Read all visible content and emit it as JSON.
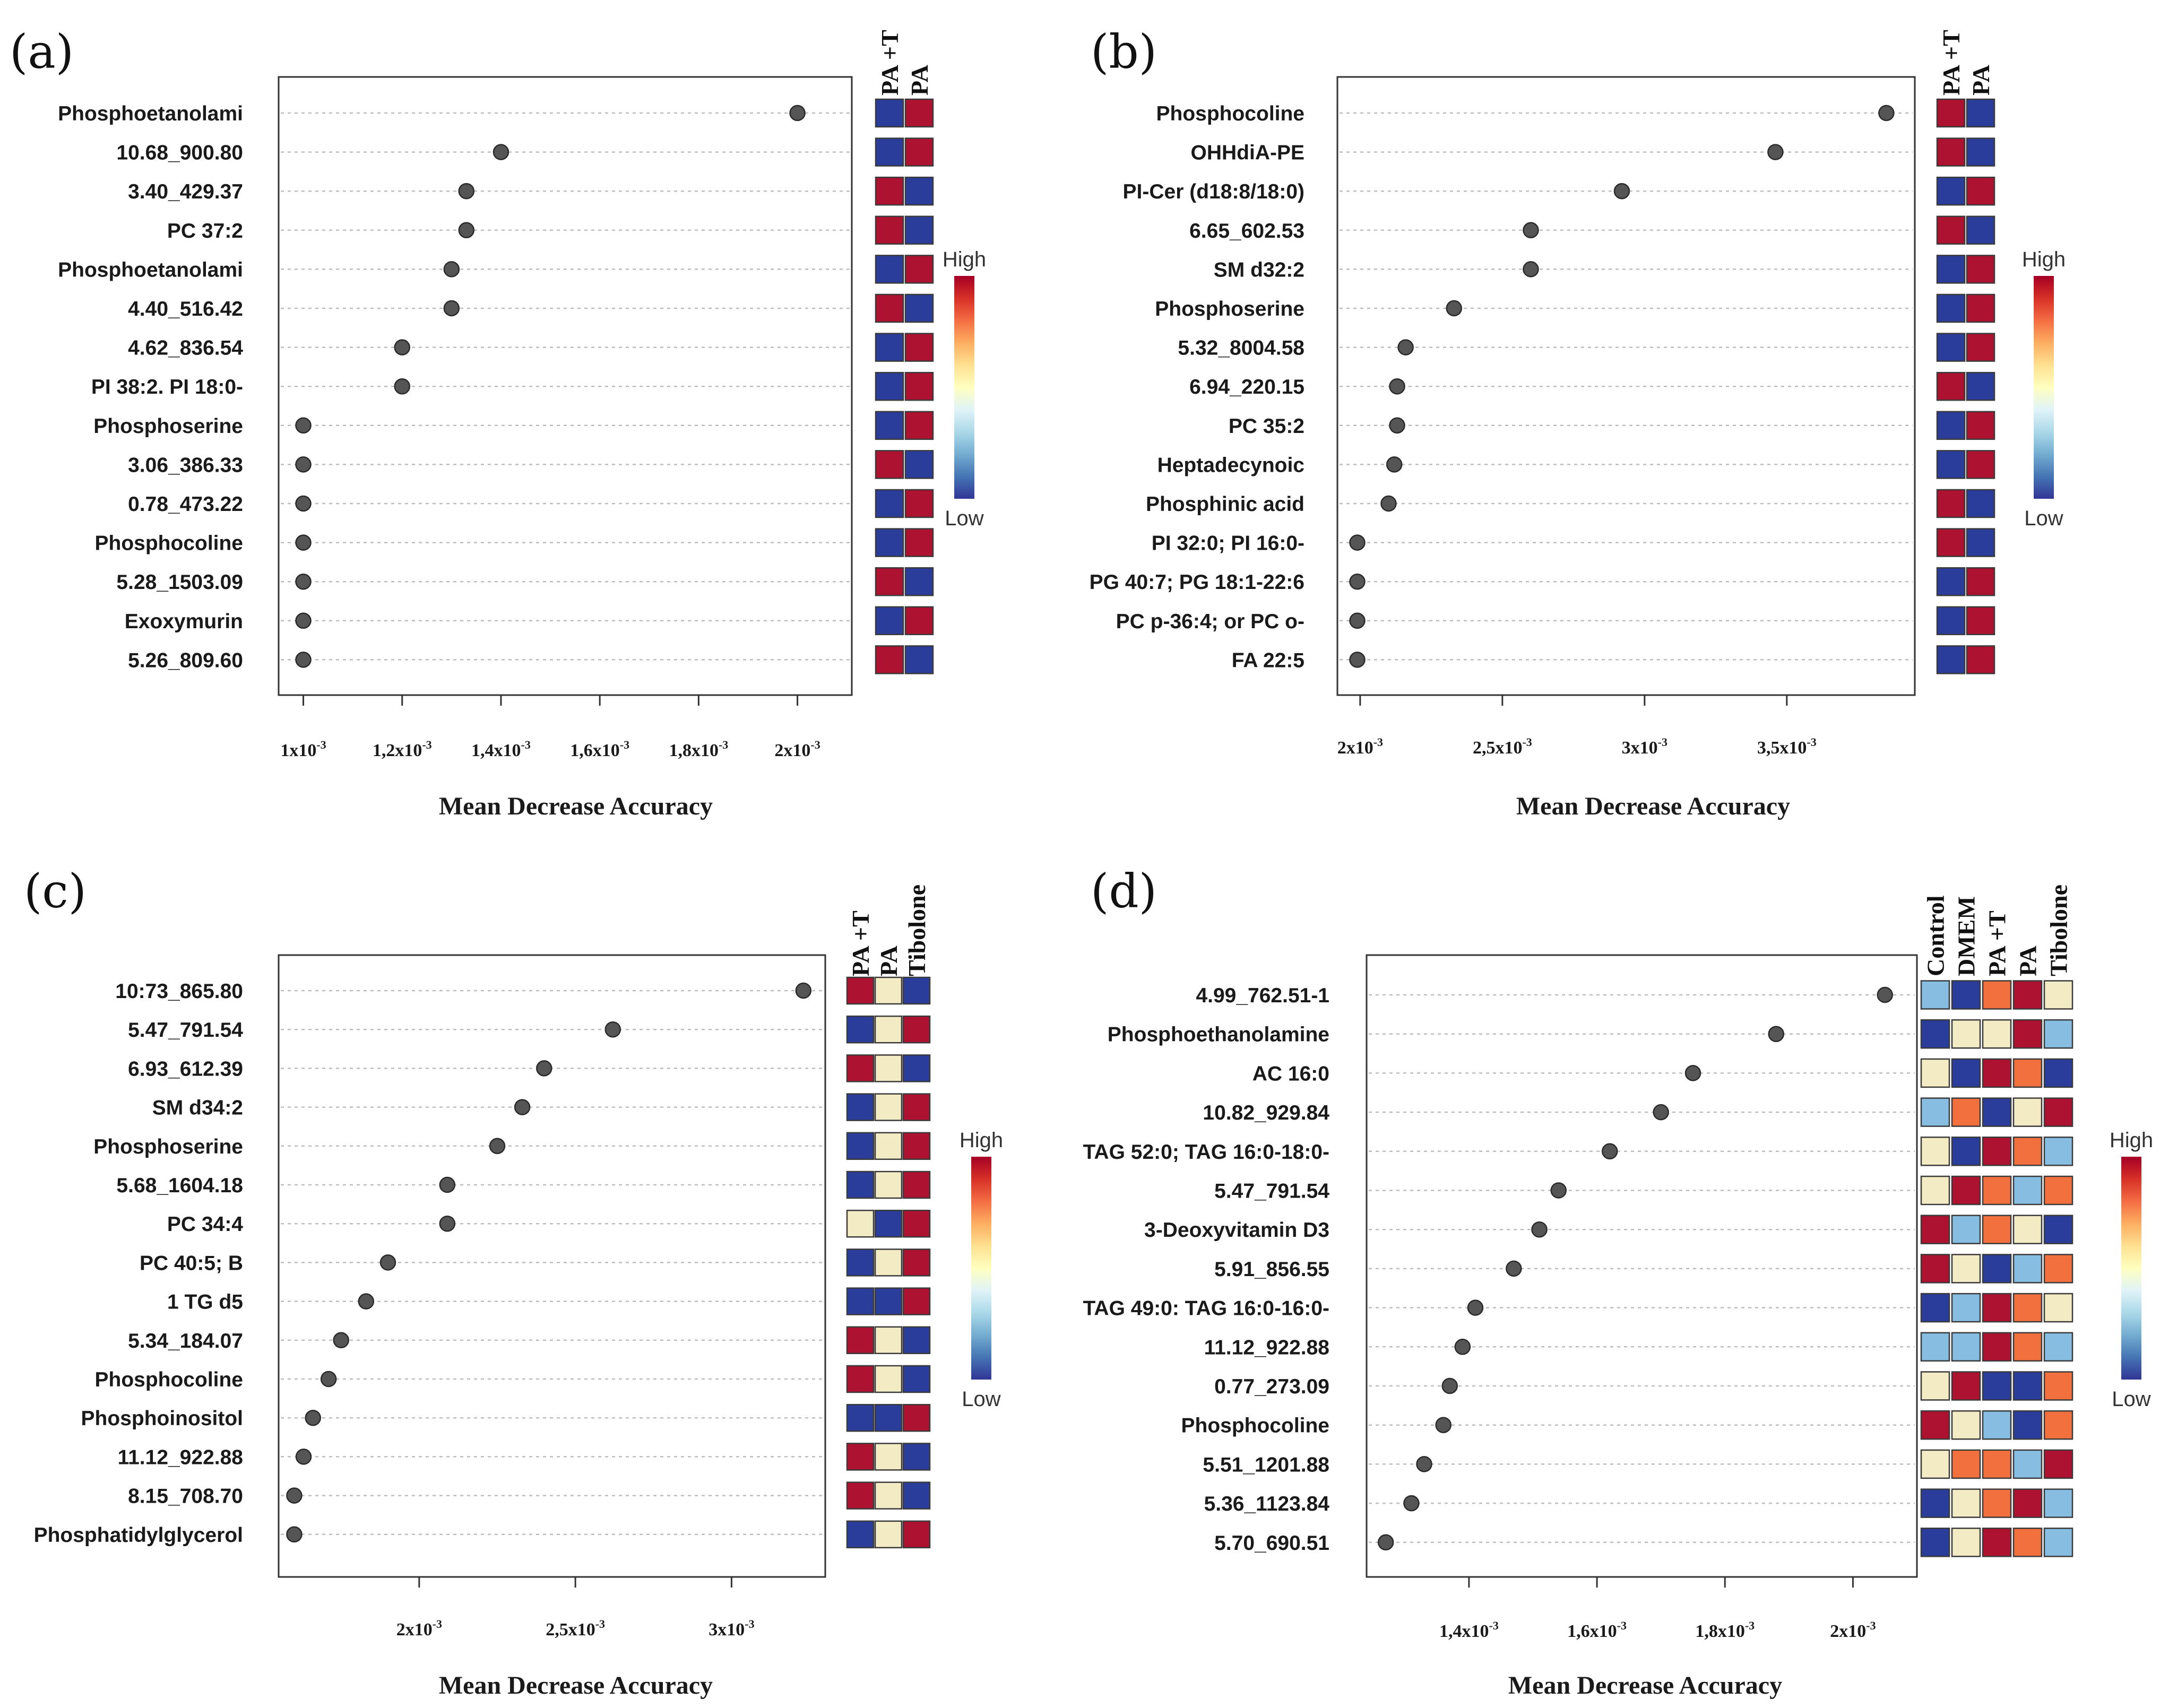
{
  "figure": {
    "legend_high": "High",
    "legend_low": "Low",
    "scale_colors": [
      "#a50026",
      "#d73027",
      "#f46d43",
      "#fdae61",
      "#fee090",
      "#ffffbf",
      "#e0f3f8",
      "#abd9e9",
      "#74add1",
      "#4575b4",
      "#313695"
    ],
    "heat_colors": {
      "1": "#2b3d9a",
      "2": "#86bde0",
      "3": "#f3ebc4",
      "4": "#f2703e",
      "5": "#ad1231"
    }
  },
  "chart_data": [
    {
      "type": "scatter",
      "panel": "(a)",
      "xlabel": "Mean Decrease Accuracy",
      "xlim": [
        0.00095,
        0.00211
      ],
      "xticks": [
        {
          "value": 0.001,
          "base": "1x10",
          "exp": "-3"
        },
        {
          "value": 0.0012,
          "base": "1,2x10",
          "exp": "-3"
        },
        {
          "value": 0.0014,
          "base": "1,4x10",
          "exp": "-3"
        },
        {
          "value": 0.0016,
          "base": "1,6x10",
          "exp": "-3"
        },
        {
          "value": 0.0018,
          "base": "1,8x10",
          "exp": "-3"
        },
        {
          "value": 0.002,
          "base": "2x10",
          "exp": "-3"
        }
      ],
      "heatmap_columns": [
        "PA +T",
        "PA"
      ],
      "features": [
        {
          "label": "Phosphoetanolami",
          "value": 0.002,
          "heat": [
            1,
            5
          ]
        },
        {
          "label": "10.68_900.80",
          "value": 0.0014,
          "heat": [
            1,
            5
          ]
        },
        {
          "label": "3.40_429.37",
          "value": 0.00133,
          "heat": [
            5,
            1
          ]
        },
        {
          "label": "PC 37:2",
          "value": 0.00133,
          "heat": [
            5,
            1
          ]
        },
        {
          "label": "Phosphoetanolami",
          "value": 0.0013,
          "heat": [
            1,
            5
          ]
        },
        {
          "label": "4.40_516.42",
          "value": 0.0013,
          "heat": [
            5,
            1
          ]
        },
        {
          "label": "4.62_836.54",
          "value": 0.0012,
          "heat": [
            1,
            5
          ]
        },
        {
          "label": "PI 38:2. PI 18:0-",
          "value": 0.0012,
          "heat": [
            1,
            5
          ]
        },
        {
          "label": "Phosphoserine",
          "value": 0.001,
          "heat": [
            1,
            5
          ]
        },
        {
          "label": "3.06_386.33",
          "value": 0.001,
          "heat": [
            5,
            1
          ]
        },
        {
          "label": "0.78_473.22",
          "value": 0.001,
          "heat": [
            1,
            5
          ]
        },
        {
          "label": "Phosphocoline",
          "value": 0.001,
          "heat": [
            1,
            5
          ]
        },
        {
          "label": "5.28_1503.09",
          "value": 0.001,
          "heat": [
            5,
            1
          ]
        },
        {
          "label": "Exoxymurin",
          "value": 0.001,
          "heat": [
            1,
            5
          ]
        },
        {
          "label": "5.26_809.60",
          "value": 0.001,
          "heat": [
            5,
            1
          ]
        }
      ]
    },
    {
      "type": "scatter",
      "panel": "(b)",
      "xlabel": "Mean Decrease Accuracy",
      "xlim": [
        0.00192,
        0.00395
      ],
      "xticks": [
        {
          "value": 0.002,
          "base": "2x10",
          "exp": "-3"
        },
        {
          "value": 0.0025,
          "base": "2,5x10",
          "exp": "-3"
        },
        {
          "value": 0.003,
          "base": "3x10",
          "exp": "-3"
        },
        {
          "value": 0.0035,
          "base": "3,5x10",
          "exp": "-3"
        }
      ],
      "heatmap_columns": [
        "PA +T",
        "PA"
      ],
      "features": [
        {
          "label": "Phosphocoline",
          "value": 0.00385,
          "heat": [
            5,
            1
          ]
        },
        {
          "label": "OHHdiA-PE",
          "value": 0.00346,
          "heat": [
            5,
            1
          ]
        },
        {
          "label": "PI-Cer (d18:8/18:0)",
          "value": 0.00292,
          "heat": [
            1,
            5
          ]
        },
        {
          "label": "6.65_602.53",
          "value": 0.0026,
          "heat": [
            5,
            1
          ]
        },
        {
          "label": "SM d32:2",
          "value": 0.0026,
          "heat": [
            1,
            5
          ]
        },
        {
          "label": "Phosphoserine",
          "value": 0.00233,
          "heat": [
            1,
            5
          ]
        },
        {
          "label": "5.32_8004.58",
          "value": 0.00216,
          "heat": [
            1,
            5
          ]
        },
        {
          "label": "6.94_220.15",
          "value": 0.00213,
          "heat": [
            5,
            1
          ]
        },
        {
          "label": "PC 35:2",
          "value": 0.00213,
          "heat": [
            1,
            5
          ]
        },
        {
          "label": "Heptadecynoic",
          "value": 0.00212,
          "heat": [
            1,
            5
          ]
        },
        {
          "label": "Phosphinic acid",
          "value": 0.0021,
          "heat": [
            5,
            1
          ]
        },
        {
          "label": "PI 32:0; PI 16:0-",
          "value": 0.00199,
          "heat": [
            5,
            1
          ]
        },
        {
          "label": "PG 40:7; PG 18:1-22:6",
          "value": 0.00199,
          "heat": [
            1,
            5
          ]
        },
        {
          "label": "PC p-36:4; or PC o-",
          "value": 0.00199,
          "heat": [
            1,
            5
          ]
        },
        {
          "label": "FA 22:5",
          "value": 0.00199,
          "heat": [
            1,
            5
          ]
        }
      ]
    },
    {
      "type": "scatter",
      "panel": "(c)",
      "xlabel": "Mean Decrease Accuracy",
      "xlim": [
        0.00155,
        0.0033
      ],
      "xticks": [
        {
          "value": 0.002,
          "base": "2x10",
          "exp": "-3"
        },
        {
          "value": 0.0025,
          "base": "2,5x10",
          "exp": "-3"
        },
        {
          "value": 0.003,
          "base": "3x10",
          "exp": "-3"
        }
      ],
      "heatmap_columns": [
        "PA +T",
        "PA",
        "Tibolone"
      ],
      "features": [
        {
          "label": "10:73_865.80",
          "value": 0.00323,
          "heat": [
            5,
            3,
            1
          ]
        },
        {
          "label": "5.47_791.54",
          "value": 0.00262,
          "heat": [
            1,
            3,
            5
          ]
        },
        {
          "label": "6.93_612.39",
          "value": 0.0024,
          "heat": [
            5,
            3,
            1
          ]
        },
        {
          "label": "SM d34:2",
          "value": 0.00233,
          "heat": [
            1,
            3,
            5
          ]
        },
        {
          "label": "Phosphoserine",
          "value": 0.00225,
          "heat": [
            1,
            3,
            5
          ]
        },
        {
          "label": "5.68_1604.18",
          "value": 0.00209,
          "heat": [
            1,
            3,
            5
          ]
        },
        {
          "label": "PC 34:4",
          "value": 0.00209,
          "heat": [
            3,
            1,
            5
          ]
        },
        {
          "label": "PC 40:5; B",
          "value": 0.0019,
          "heat": [
            1,
            3,
            5
          ]
        },
        {
          "label": "1 TG d5",
          "value": 0.00183,
          "heat": [
            1,
            1,
            5
          ]
        },
        {
          "label": "5.34_184.07",
          "value": 0.00175,
          "heat": [
            5,
            3,
            1
          ]
        },
        {
          "label": "Phosphocoline",
          "value": 0.00171,
          "heat": [
            5,
            3,
            1
          ]
        },
        {
          "label": "Phosphoinositol",
          "value": 0.00166,
          "heat": [
            1,
            1,
            5
          ]
        },
        {
          "label": "11.12_922.88",
          "value": 0.00163,
          "heat": [
            5,
            3,
            1
          ]
        },
        {
          "label": "8.15_708.70",
          "value": 0.0016,
          "heat": [
            5,
            3,
            1
          ]
        },
        {
          "label": "Phosphatidylglycerol",
          "value": 0.0016,
          "heat": [
            1,
            3,
            5
          ]
        }
      ]
    },
    {
      "type": "scatter",
      "panel": "(d)",
      "xlabel": "Mean Decrease Accuracy",
      "xlim": [
        0.00124,
        0.0021
      ],
      "xticks": [
        {
          "value": 0.0014,
          "base": "1,4x10",
          "exp": "-3"
        },
        {
          "value": 0.0016,
          "base": "1,6x10",
          "exp": "-3"
        },
        {
          "value": 0.0018,
          "base": "1,8x10",
          "exp": "-3"
        },
        {
          "value": 0.002,
          "base": "2x10",
          "exp": "-3"
        }
      ],
      "heatmap_columns": [
        "Control",
        "DMEM",
        "PA +T",
        "PA",
        "Tibolone"
      ],
      "features": [
        {
          "label": "4.99_762.51-1",
          "value": 0.00205,
          "heat": [
            2,
            1,
            4,
            5,
            3
          ]
        },
        {
          "label": "Phosphoethanolamine",
          "value": 0.00188,
          "heat": [
            1,
            3,
            3,
            5,
            2
          ]
        },
        {
          "label": "AC 16:0",
          "value": 0.00175,
          "heat": [
            3,
            1,
            5,
            4,
            1
          ]
        },
        {
          "label": "10.82_929.84",
          "value": 0.0017,
          "heat": [
            2,
            4,
            1,
            3,
            5
          ]
        },
        {
          "label": "TAG 52:0; TAG 16:0-18:0-",
          "value": 0.00162,
          "heat": [
            3,
            1,
            5,
            4,
            2
          ]
        },
        {
          "label": "5.47_791.54",
          "value": 0.00154,
          "heat": [
            3,
            5,
            4,
            2,
            4
          ]
        },
        {
          "label": "3-Deoxyvitamin D3",
          "value": 0.00151,
          "heat": [
            5,
            2,
            4,
            3,
            1
          ]
        },
        {
          "label": "5.91_856.55",
          "value": 0.00147,
          "heat": [
            5,
            3,
            1,
            2,
            4
          ]
        },
        {
          "label": "TAG 49:0: TAG 16:0-16:0-",
          "value": 0.00141,
          "heat": [
            1,
            2,
            5,
            4,
            3
          ]
        },
        {
          "label": "11.12_922.88",
          "value": 0.00139,
          "heat": [
            2,
            2,
            5,
            4,
            2
          ]
        },
        {
          "label": "0.77_273.09",
          "value": 0.00137,
          "heat": [
            3,
            5,
            1,
            1,
            4
          ]
        },
        {
          "label": "Phosphocoline",
          "value": 0.00136,
          "heat": [
            5,
            3,
            2,
            1,
            4
          ]
        },
        {
          "label": "5.51_1201.88",
          "value": 0.00133,
          "heat": [
            3,
            4,
            4,
            2,
            5
          ]
        },
        {
          "label": "5.36_1123.84",
          "value": 0.00131,
          "heat": [
            1,
            3,
            4,
            5,
            2
          ]
        },
        {
          "label": "5.70_690.51",
          "value": 0.00127,
          "heat": [
            1,
            3,
            5,
            4,
            2
          ]
        }
      ]
    }
  ]
}
